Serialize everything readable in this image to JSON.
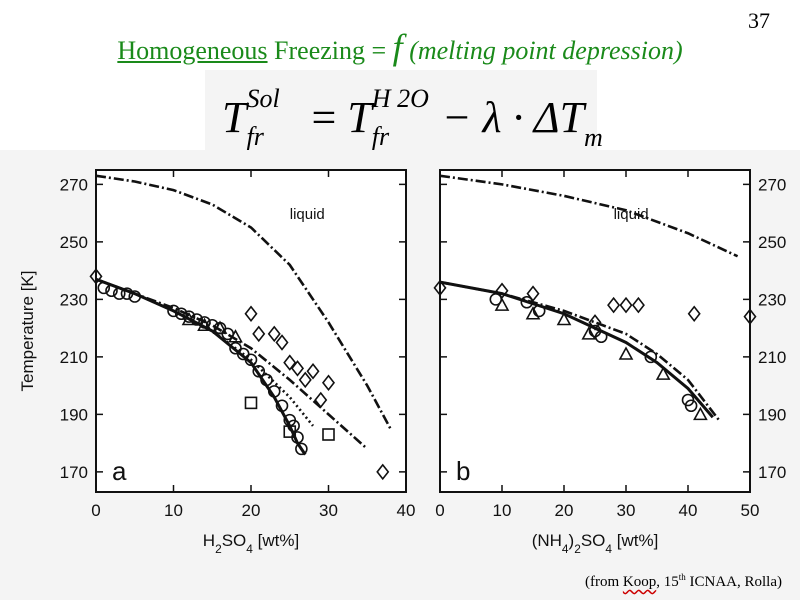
{
  "slide_number": "37",
  "title": {
    "part1": "Homogeneous",
    "part2": " Freezing = ",
    "part3": "f",
    "part4": " (melting point depression)"
  },
  "equation": {
    "T": "T",
    "sup_left": "Sol",
    "sub": "fr",
    "equals": "=",
    "sup_right": "H 2O",
    "minus_lambda": "− λ · ΔT",
    "sub_m": "m"
  },
  "credit": {
    "prefix": "(from ",
    "author": "Koop",
    "comma": ", 15",
    "sup": "th",
    "rest": " ICNAA, Rolla)"
  },
  "chart_data": [
    {
      "type": "scatter",
      "panel_label": "a",
      "annotation": "liquid",
      "xlabel": "H2SO4 [wt%]",
      "ylabel": "Temperature [K]",
      "xlim": [
        0,
        40
      ],
      "ylim": [
        163,
        275
      ],
      "xticks": [
        0,
        10,
        20,
        30,
        40
      ],
      "yticks": [
        170,
        190,
        210,
        230,
        250,
        270
      ],
      "curves": [
        {
          "name": "melting-curve",
          "style": "dashdot",
          "x": [
            0,
            5,
            10,
            15,
            20,
            25,
            30,
            35,
            38
          ],
          "y": [
            273,
            271,
            268,
            263,
            255,
            242,
            222,
            200,
            185
          ]
        },
        {
          "name": "freezing-curve-dashdot",
          "style": "dashdot",
          "x": [
            0,
            5,
            10,
            15,
            20,
            25,
            30,
            35
          ],
          "y": [
            237,
            232,
            227,
            221,
            213,
            202,
            190,
            178
          ]
        },
        {
          "name": "freezing-curve-dotted",
          "style": "dotted",
          "x": [
            0,
            5,
            10,
            15,
            20,
            25,
            28
          ],
          "y": [
            237,
            232,
            226,
            219,
            209,
            196,
            186
          ]
        },
        {
          "name": "freezing-curve-solid",
          "style": "solid",
          "x": [
            0,
            5,
            10,
            15,
            20,
            23,
            25,
            26,
            27
          ],
          "y": [
            237,
            232,
            226,
            219,
            208,
            196,
            186,
            180,
            176
          ]
        }
      ],
      "series": [
        {
          "name": "diamonds",
          "marker": "diamond",
          "x": [
            0,
            20,
            21,
            23,
            24,
            25,
            26,
            27,
            28,
            29,
            30,
            37
          ],
          "y": [
            238,
            225,
            218,
            218,
            215,
            208,
            206,
            202,
            205,
            195,
            201,
            170
          ]
        },
        {
          "name": "circles",
          "marker": "circle",
          "x": [
            1,
            2,
            3,
            4,
            5,
            10,
            11,
            12,
            13,
            14,
            15,
            16,
            17,
            18,
            19,
            20,
            21,
            22,
            23,
            24,
            25,
            25.5,
            26,
            26.5
          ],
          "y": [
            234,
            233,
            232,
            232,
            231,
            226,
            225,
            224,
            223,
            222,
            221,
            220,
            218,
            213,
            211,
            209,
            205,
            202,
            198,
            193,
            188,
            186,
            182,
            178
          ]
        },
        {
          "name": "triangles",
          "marker": "triangle",
          "x": [
            12,
            14,
            16,
            18
          ],
          "y": [
            223,
            221,
            220,
            217
          ]
        },
        {
          "name": "squares",
          "marker": "square",
          "x": [
            20,
            25,
            30
          ],
          "y": [
            194,
            184,
            183
          ]
        }
      ]
    },
    {
      "type": "scatter",
      "panel_label": "b",
      "annotation": "liquid",
      "xlabel": "(NH4)2SO4 [wt%]",
      "ylabel": "",
      "xlim": [
        0,
        50
      ],
      "ylim": [
        163,
        275
      ],
      "xticks": [
        0,
        10,
        20,
        30,
        40,
        50
      ],
      "yticks": [
        170,
        190,
        210,
        230,
        250,
        270
      ],
      "curves": [
        {
          "name": "melting-curve",
          "style": "dashdot",
          "x": [
            0,
            10,
            20,
            30,
            40,
            48
          ],
          "y": [
            273,
            270,
            266,
            261,
            253,
            245
          ]
        },
        {
          "name": "freezing-curve-dashdot",
          "style": "dashdot",
          "x": [
            0,
            10,
            20,
            30,
            35,
            40,
            45
          ],
          "y": [
            236,
            232,
            226,
            218,
            211,
            202,
            188
          ]
        },
        {
          "name": "freezing-curve-solid",
          "style": "solid",
          "x": [
            0,
            10,
            20,
            30,
            35,
            40,
            44
          ],
          "y": [
            236,
            232,
            225,
            215,
            208,
            199,
            189
          ]
        }
      ],
      "series": [
        {
          "name": "diamonds",
          "marker": "diamond",
          "x": [
            0,
            10,
            15,
            25,
            28,
            30,
            32,
            41,
            50
          ],
          "y": [
            234,
            233,
            232,
            222,
            228,
            228,
            228,
            225,
            224
          ]
        },
        {
          "name": "circles",
          "marker": "circle",
          "x": [
            9,
            14,
            16,
            25,
            26,
            34,
            40,
            40.5
          ],
          "y": [
            230,
            229,
            226,
            219,
            217,
            210,
            195,
            193
          ]
        },
        {
          "name": "triangles",
          "marker": "triangle",
          "x": [
            10,
            15,
            20,
            24,
            30,
            36,
            42
          ],
          "y": [
            228,
            225,
            223,
            218,
            211,
            204,
            190
          ]
        }
      ]
    }
  ]
}
